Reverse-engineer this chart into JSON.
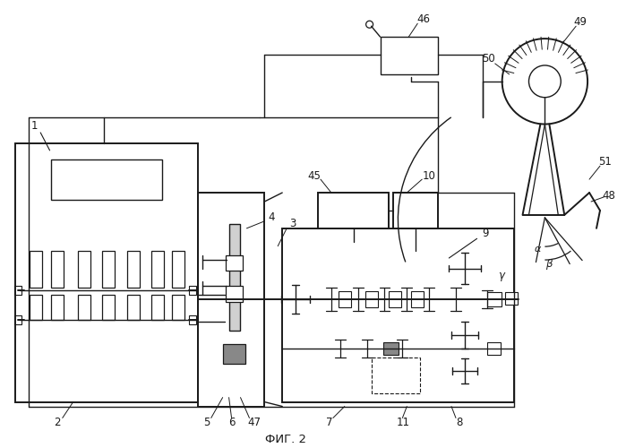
{
  "bg_color": "#ffffff",
  "lc": "#1a1a1a",
  "title": "ФИГ. 2",
  "fig_w": 6.99,
  "fig_h": 5.0,
  "dpi": 100
}
